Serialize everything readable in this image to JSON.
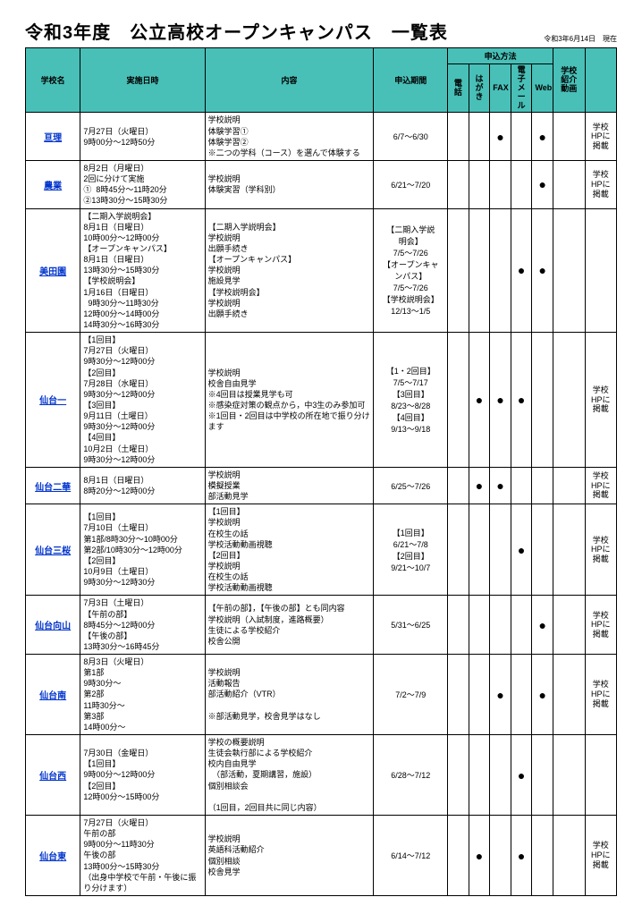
{
  "colors": {
    "header_bg": "#48c0b8",
    "link_color": "#0033cc",
    "border_color": "#000000",
    "background": "#ffffff"
  },
  "typography": {
    "title_fontsize": 20,
    "body_fontsize": 9,
    "small_fontsize": 8
  },
  "meta": {
    "title": "令和3年度　公立高校オープンキャンパス　一覧表",
    "date_stamp": "令和3年6月14日　現在"
  },
  "headers": {
    "school": "学校名",
    "date": "実施日時",
    "content": "内容",
    "period": "申込期間",
    "method_group": "申込方法",
    "video": "学校\n紹介\n動画",
    "link": " ",
    "methods": [
      "電話",
      "はが\nき",
      "FAX",
      "電子\nメール",
      "Web"
    ]
  },
  "rows": [
    {
      "school": "亘理",
      "date": "7月27日（火曜日）\n9時00分～12時50分",
      "content": "学校説明\n体験学習①\n体験学習②\n※二つの学科（コース）を選んで体験する",
      "period": "6/7～6/30",
      "methods": [
        "",
        "",
        "●",
        "",
        "●"
      ],
      "video": "",
      "link": "学校\nHPに\n掲載"
    },
    {
      "school": "農業",
      "date": "8月2日（月曜日）\n2回に分けて実施\n①  8時45分～11時20分\n②13時30分～15時30分",
      "content": "学校説明\n体験実習（学科別）",
      "period": "6/21～7/20",
      "methods": [
        "",
        "",
        "",
        "",
        "●"
      ],
      "video": "",
      "link": "学校\nHPに\n掲載"
    },
    {
      "school": "美田園",
      "date": "【二期入学説明会】\n8月1日（日曜日）\n10時00分～12時00分\n【オープンキャンパス】\n8月1日（日曜日）\n13時30分～15時30分\n【学校説明会】\n1月16日（日曜日）\n  9時30分～11時30分\n12時00分～14時00分\n14時30分～16時30分",
      "content": "【二期入学説明会】\n学校説明\n出願手続き\n【オープンキャンパス】\n学校説明\n施設見学\n【学校説明会】\n学校説明\n出願手続き",
      "period": "【二期入学説\n明会】\n7/5～7/26\n【オープンキャ\nンパス】\n7/5～7/26\n【学校説明会】\n12/13～1/5",
      "methods": [
        "",
        "",
        "",
        "●",
        "●"
      ],
      "video": "",
      "link": ""
    },
    {
      "school": "仙台一",
      "date": "【1回目】\n7月27日（火曜日）\n9時30分～12時00分\n【2回目】\n7月28日（水曜日）\n9時30分～12時00分\n【3回目】\n9月11日（土曜日）\n9時30分～12時00分\n【4回目】\n10月2日（土曜日）\n9時30分～12時00分",
      "content": "学校説明\n校舎自由見学\n※4回目は授業見学も可\n※感染症対策の観点から，中3生のみ参加可\n※1回目・2回目は中学校の所在地で振り分けます",
      "period": "【1・2回目】\n7/5～7/17\n【3回目】\n8/23～8/28\n【4回目】\n9/13～9/18",
      "methods": [
        "",
        "●",
        "●",
        "●",
        ""
      ],
      "video": "",
      "link": "学校\nHPに\n掲載"
    },
    {
      "school": "仙台二華",
      "date": "8月1日（日曜日）\n8時20分～12時00分",
      "content": "学校説明\n模擬授業\n部活動見学",
      "period": "6/25～7/26",
      "methods": [
        "",
        "●",
        "●",
        "",
        ""
      ],
      "video": "",
      "link": "学校\nHPに\n掲載"
    },
    {
      "school": "仙台三桜",
      "date": "【1回目】\n7月10日（土曜日）\n第1部/8時30分～10時00分\n第2部/10時30分～12時00分\n【2回目】\n10月9日（土曜日）\n9時30分～12時30分",
      "content": "【1回目】\n学校説明\n在校生の話\n学校活動動画視聴\n【2回目】\n学校説明\n在校生の話\n学校活動動画視聴",
      "period": "【1回目】\n6/21～7/8\n【2回目】\n9/21～10/7",
      "methods": [
        "",
        "",
        "",
        "●",
        ""
      ],
      "video": "",
      "link": "学校\nHPに\n掲載"
    },
    {
      "school": "仙台向山",
      "date": "7月3日（土曜日）\n【午前の部】\n8時45分～12時00分\n【午後の部】\n13時30分～16時45分",
      "content": "【午前の部】，【午後の部】とも同内容\n学校説明（入試制度，進路概要）\n生徒による学校紹介\n校舎公開",
      "period": "5/31～6/25",
      "methods": [
        "",
        "",
        "",
        "",
        "●"
      ],
      "video": "",
      "link": "学校\nHPに\n掲載"
    },
    {
      "school": "仙台南",
      "date": "8月3日（火曜日）\n第1部\n9時30分～\n第2部\n11時30分～\n第3部\n14時00分～",
      "content": "学校説明\n活動報告\n部活動紹介（VTR）\n\n※部活動見学，校舎見学はなし",
      "period": "7/2～7/9",
      "methods": [
        "",
        "",
        "●",
        "",
        "●"
      ],
      "video": "",
      "link": "学校\nHPに\n掲載"
    },
    {
      "school": "仙台西",
      "date": "7月30日（金曜日）\n【1回目】\n9時00分～12時00分\n【2回目】\n12時00分～15時00分",
      "content": "学校の概要説明\n生徒会執行部による学校紹介\n校内自由見学\n　（部活動，夏期講習，施設）\n個別相談会\n\n（1回目，2回目共に同じ内容）",
      "period": "6/28～7/12",
      "methods": [
        "",
        "",
        "",
        "●",
        ""
      ],
      "video": "",
      "link": ""
    },
    {
      "school": "仙台東",
      "date": "7月27日（火曜日）\n午前の部\n9時00分～11時30分\n午後の部\n13時00分～15時30分\n（出身中学校で午前・午後に振り分けます）",
      "content": "学校説明\n英語科活動紹介\n個別相談\n校舎見学",
      "period": "6/14～7/12",
      "methods": [
        "",
        "●",
        "",
        "●",
        ""
      ],
      "video": "",
      "link": "学校\nHPに\n掲載"
    }
  ]
}
